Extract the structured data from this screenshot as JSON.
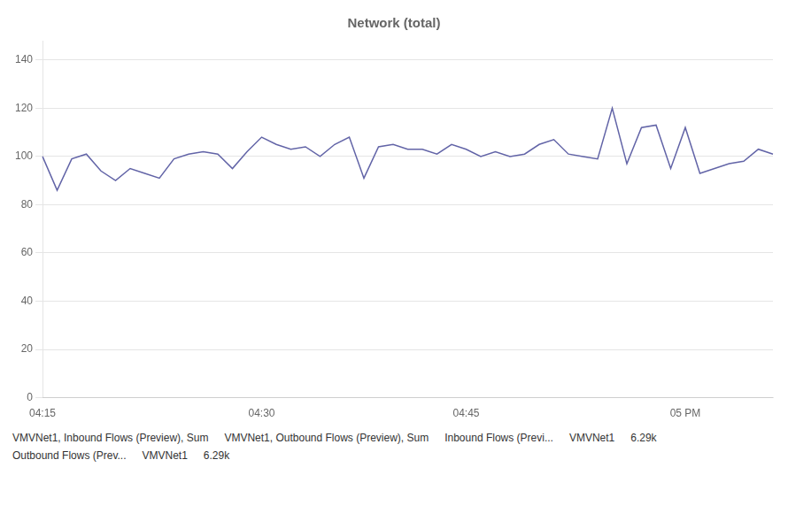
{
  "chart_data": {
    "type": "line",
    "title": "Network (total)",
    "categories": [
      "04:15",
      null,
      null,
      null,
      null,
      null,
      null,
      null,
      null,
      null,
      null,
      null,
      null,
      null,
      null,
      "04:30",
      null,
      null,
      null,
      null,
      null,
      null,
      null,
      null,
      null,
      null,
      null,
      null,
      null,
      "04:45",
      null,
      null,
      null,
      null,
      null,
      null,
      null,
      null,
      null,
      null,
      null,
      null,
      null,
      null,
      "05 PM",
      null,
      null,
      null,
      null,
      null,
      null
    ],
    "values": [
      100,
      86,
      99,
      101,
      94,
      90,
      95,
      93,
      91,
      99,
      101,
      102,
      101,
      95,
      102,
      108,
      105,
      103,
      104,
      100,
      105,
      108,
      91,
      104,
      105,
      103,
      103,
      101,
      105,
      103,
      100,
      102,
      100,
      101,
      105,
      107,
      101,
      100,
      99,
      120,
      97,
      112,
      113,
      95,
      112,
      93,
      95,
      97,
      98,
      103,
      101
    ],
    "color": "#6264A7",
    "ylim": [
      0,
      148
    ],
    "yticks": [
      0,
      20,
      40,
      60,
      80,
      100,
      120,
      140
    ],
    "grid": true,
    "annotations": [
      "VMVNet1, Inbound Flows (Preview), Sum",
      "VMVNet1, Outbound Flows (Preview), Sum",
      "Inbound Flows (Previ...",
      "VMVNet1",
      "6.29k",
      "Outbound Flows (Prev...",
      "VMVNet1",
      "6.29k"
    ]
  }
}
